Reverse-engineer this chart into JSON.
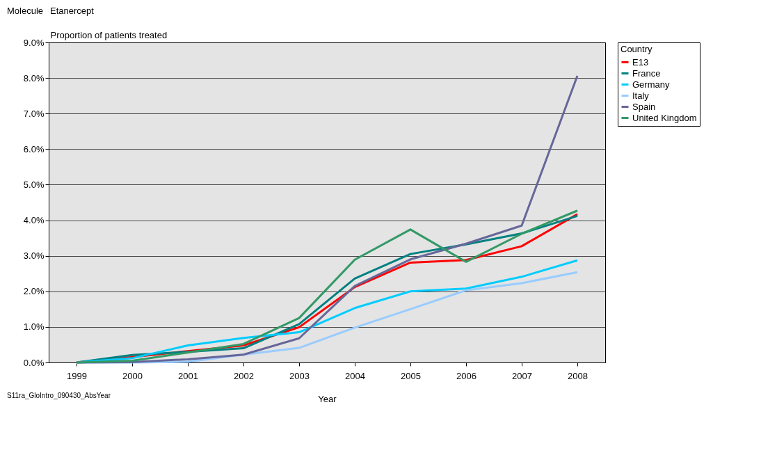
{
  "chart_data": {
    "type": "line",
    "title": "Molecule",
    "subtitle": "Etanercept",
    "xlabel": "Year",
    "ylabel": "Proportion of patients treated",
    "legend_title": "Country",
    "annotations": [
      "S11ra_GloIntro_090430_AbsYear"
    ],
    "categories": [
      "1999",
      "2000",
      "2001",
      "2002",
      "2003",
      "2004",
      "2005",
      "2006",
      "2007",
      "2008"
    ],
    "series": [
      {
        "name": "E13",
        "color": "#ff0000",
        "values": [
          0,
          0.15,
          0.32,
          0.48,
          0.99,
          2.12,
          2.81,
          2.88,
          3.27,
          4.17
        ]
      },
      {
        "name": "France",
        "color": "#008080",
        "values": [
          0,
          0.21,
          0.3,
          0.4,
          1.08,
          2.36,
          3.05,
          3.32,
          3.63,
          4.12
        ]
      },
      {
        "name": "Germany",
        "color": "#00ccff",
        "values": [
          0,
          0.12,
          0.48,
          0.69,
          0.85,
          1.53,
          2.0,
          2.08,
          2.41,
          2.87
        ]
      },
      {
        "name": "Italy",
        "color": "#99ccff",
        "values": [
          0,
          0,
          0.02,
          0.22,
          0.41,
          0.98,
          1.5,
          2.03,
          2.23,
          2.54
        ]
      },
      {
        "name": "Spain",
        "color": "#666699",
        "values": [
          0,
          0.01,
          0.09,
          0.22,
          0.68,
          2.15,
          2.9,
          3.34,
          3.85,
          8.06
        ]
      },
      {
        "name": "United Kingdom",
        "color": "#339966",
        "values": [
          0,
          0.05,
          0.28,
          0.52,
          1.25,
          2.89,
          3.74,
          2.83,
          3.62,
          4.27
        ]
      }
    ],
    "ylim": [
      0,
      9
    ],
    "yticks": [
      {
        "value": 0,
        "label": "0.0%"
      },
      {
        "value": 1,
        "label": "1.0%"
      },
      {
        "value": 2,
        "label": "2.0%"
      },
      {
        "value": 3,
        "label": "3.0%"
      },
      {
        "value": 4,
        "label": "4.0%"
      },
      {
        "value": 5,
        "label": "5.0%"
      },
      {
        "value": 6,
        "label": "6.0%"
      },
      {
        "value": 7,
        "label": "7.0%"
      },
      {
        "value": 8,
        "label": "8.0%"
      },
      {
        "value": 9,
        "label": "9.0%"
      }
    ],
    "grid": "y",
    "legend": "right",
    "marker": "none",
    "line_style": "solid"
  }
}
